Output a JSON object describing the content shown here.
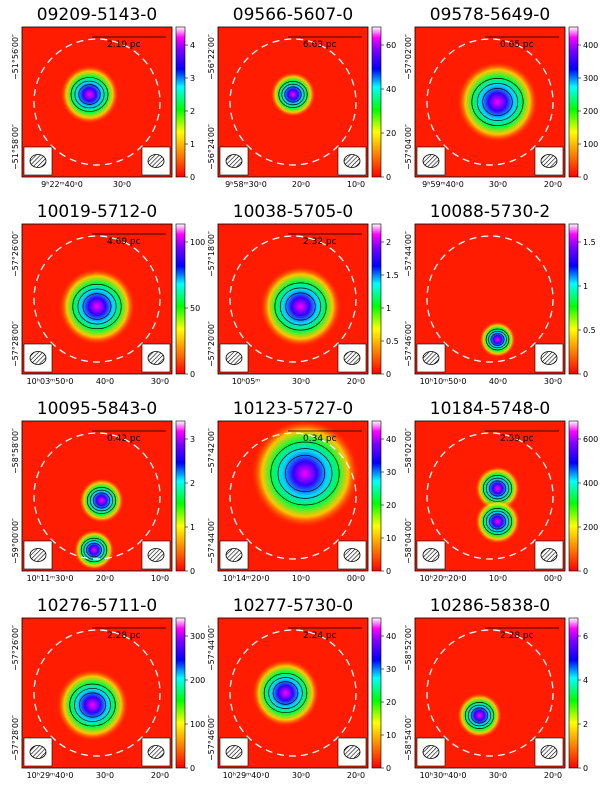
{
  "panels": [
    {
      "title": "09209-5143-0",
      "scale": "2.19 pc",
      "colorbar": [
        "0",
        "1",
        "2",
        "3",
        "4"
      ],
      "dec": [
        "−51°56′00″",
        "−51°58′00″"
      ],
      "ra": [
        "9ʰ22ᵐ40ˢ0",
        "30ˢ0"
      ]
    },
    {
      "title": "09566-5607-0",
      "scale": "6.63 pc",
      "colorbar": [
        "0",
        "20",
        "40",
        "60"
      ],
      "dec": [
        "−56°22′00″",
        "−56°24′00″"
      ],
      "ra": [
        "9ʰ58ᵐ30ˢ0",
        "20ˢ0",
        "10ˢ0"
      ]
    },
    {
      "title": "09578-5649-0",
      "scale": "0.65 pc",
      "colorbar": [
        "0",
        "100",
        "200",
        "300",
        "400"
      ],
      "dec": [
        "−57°02′00″",
        "−57°04′00″"
      ],
      "ra": [
        "9ʰ59ᵐ40ˢ0",
        "30ˢ0",
        "20ˢ0"
      ]
    },
    {
      "title": "10019-5712-0",
      "scale": "4.69 pc",
      "colorbar": [
        "0",
        "50",
        "100"
      ],
      "dec": [
        "−57°26′00″",
        "−57°28′00″"
      ],
      "ra": [
        "10ʰ03ᵐ50ˢ0",
        "40ˢ0",
        "30ˢ0"
      ]
    },
    {
      "title": "10038-5705-0",
      "scale": "2.32 pc",
      "colorbar": [
        "0",
        "0.5",
        "1",
        "1.5",
        "2"
      ],
      "dec": [
        "−57°18′00″",
        "−57°20′00″"
      ],
      "ra": [
        "10ʰ05ᵐ",
        "30ˢ0",
        "20ˢ0"
      ]
    },
    {
      "title": "10088-5730-2",
      "colorbar": [
        "0",
        "0.5",
        "1",
        "1.5"
      ],
      "dec": [
        "−57°44′00″",
        "−57°46′00″"
      ],
      "ra": [
        "10ʰ10ᵐ50ˢ0",
        "40ˢ0",
        "30ˢ0"
      ]
    },
    {
      "title": "10095-5843-0",
      "scale": "0.42 pc",
      "colorbar": [
        "0",
        "1",
        "2",
        "3"
      ],
      "dec": [
        "−58°58′00″",
        "−59°00′00″"
      ],
      "ra": [
        "10ʰ11ᵐ30ˢ0",
        "20ˢ0",
        "10ˢ0"
      ]
    },
    {
      "title": "10123-5727-0",
      "scale": "0.34 pc",
      "colorbar": [
        "0",
        "10",
        "20",
        "30",
        "40"
      ],
      "dec": [
        "−57°42′00″",
        "−57°44′00″"
      ],
      "ra": [
        "10ʰ14ᵐ20ˢ0",
        "10ˢ0",
        "00ˢ0"
      ]
    },
    {
      "title": "10184-5748-0",
      "scale": "2.59 pc",
      "colorbar": [
        "0",
        "200",
        "400",
        "600"
      ],
      "dec": [
        "−58°02′00″",
        "−58°04′00″"
      ],
      "ra": [
        "10ʰ20ᵐ20ˢ0",
        "10ˢ0",
        "00ˢ0"
      ]
    },
    {
      "title": "10276-5711-0",
      "scale": "2.28 pc",
      "colorbar": [
        "0",
        "100",
        "200",
        "300"
      ],
      "dec": [
        "−57°26′00″",
        "−57°28′00″"
      ],
      "ra": [
        "10ʰ29ᵐ40ˢ0",
        "30ˢ0",
        "20ˢ0"
      ]
    },
    {
      "title": "10277-5730-0",
      "scale": "2.24 pc",
      "colorbar": [
        "0",
        "10",
        "20",
        "30",
        "40"
      ],
      "dec": [
        "−57°44′00″",
        "−57°46′00″"
      ],
      "ra": [
        "10ʰ29ᵐ40ˢ0",
        "30ˢ0",
        "20ˢ0"
      ]
    },
    {
      "title": "10286-5838-0",
      "scale": "2.28 pc",
      "colorbar": [
        "0",
        "2",
        "4",
        "6"
      ],
      "dec": [
        "−58°52′00″",
        "−58°54′00″"
      ],
      "ra": [
        "10ʰ30ᵐ40ˢ0",
        "30ˢ0",
        "20ˢ0"
      ]
    }
  ]
}
